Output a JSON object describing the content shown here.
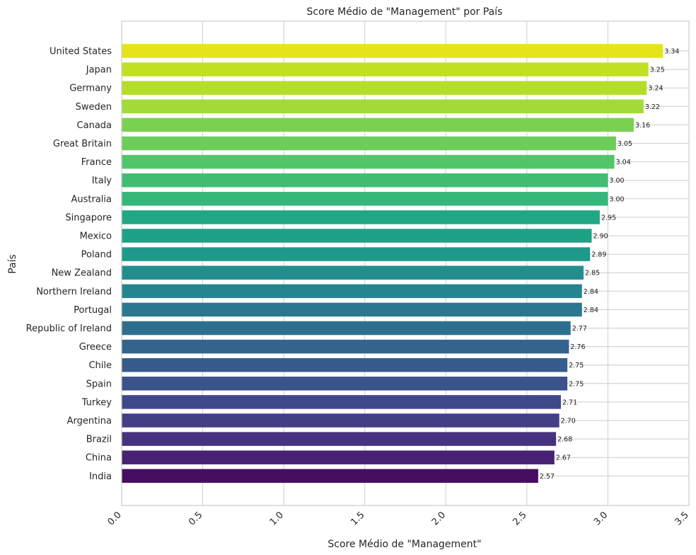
{
  "chart_data": {
    "type": "bar",
    "orientation": "horizontal",
    "title": "Score Médio de \"Management\" por País",
    "xlabel": "Score Médio de \"Management\"",
    "ylabel": "País",
    "xlim": [
      0,
      3.5
    ],
    "xticks": [
      "0.0",
      "0.5",
      "1.0",
      "1.5",
      "2.0",
      "2.5",
      "3.0",
      "3.5"
    ],
    "grid": true,
    "categories": [
      "United States",
      "Japan",
      "Germany",
      "Sweden",
      "Canada",
      "Great Britain",
      "France",
      "Italy",
      "Australia",
      "Singapore",
      "Mexico",
      "Poland",
      "New Zealand",
      "Northern Ireland",
      "Portugal",
      "Republic of Ireland",
      "Greece",
      "Chile",
      "Spain",
      "Turkey",
      "Argentina",
      "Brazil",
      "China",
      "India"
    ],
    "values": [
      3.34,
      3.25,
      3.24,
      3.22,
      3.16,
      3.05,
      3.04,
      3.0,
      3.0,
      2.95,
      2.9,
      2.89,
      2.85,
      2.84,
      2.84,
      2.77,
      2.76,
      2.75,
      2.75,
      2.71,
      2.7,
      2.68,
      2.67,
      2.57
    ],
    "value_labels": [
      "3.34",
      "3.25",
      "3.24",
      "3.22",
      "3.16",
      "3.05",
      "3.04",
      "3.00",
      "3.00",
      "2.95",
      "2.90",
      "2.89",
      "2.85",
      "2.84",
      "2.84",
      "2.77",
      "2.76",
      "2.75",
      "2.75",
      "2.71",
      "2.70",
      "2.68",
      "2.67",
      "2.57"
    ],
    "colors": [
      "#e5e419",
      "#c2df23",
      "#b5de2b",
      "#a2da37",
      "#7ad151",
      "#6ccd5a",
      "#52c569",
      "#40bd72",
      "#35b779",
      "#22a785",
      "#1fa188",
      "#1f998a",
      "#228d8d",
      "#25858e",
      "#2a778e",
      "#2e6f8e",
      "#32648e",
      "#365c8d",
      "#3b528b",
      "#3f4889",
      "#433e85",
      "#46327e",
      "#482173",
      "#470d60"
    ]
  }
}
